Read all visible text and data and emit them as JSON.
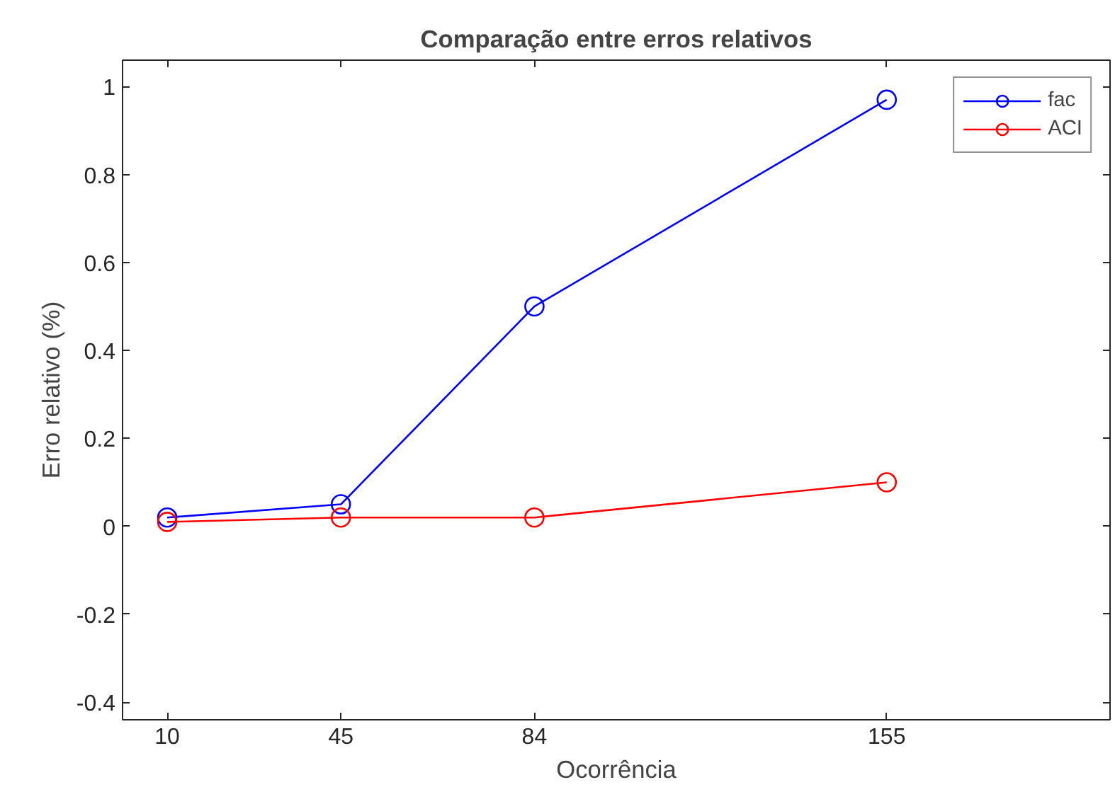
{
  "chart_data": {
    "type": "line",
    "title": "Comparação entre erros relativos",
    "xlabel": "Ocorrência",
    "ylabel": "Erro relativo (%)",
    "x": [
      10,
      45,
      84,
      155
    ],
    "series": [
      {
        "name": "fac",
        "color": "#0000ff",
        "values": [
          0.02,
          0.05,
          0.5,
          0.97
        ]
      },
      {
        "name": "ACI",
        "color": "#ff0000",
        "values": [
          0.01,
          0.02,
          0.02,
          0.1
        ]
      }
    ],
    "xlim": [
      1,
      200
    ],
    "xticks": [
      10,
      45,
      84,
      155
    ],
    "ylim": [
      -0.44,
      1.06
    ],
    "yticks": [
      -0.4,
      -0.2,
      0,
      0.2,
      0.4,
      0.6,
      0.8,
      1
    ],
    "marker": "circle",
    "line_style": "solid",
    "grid": false,
    "legend": "top right"
  }
}
